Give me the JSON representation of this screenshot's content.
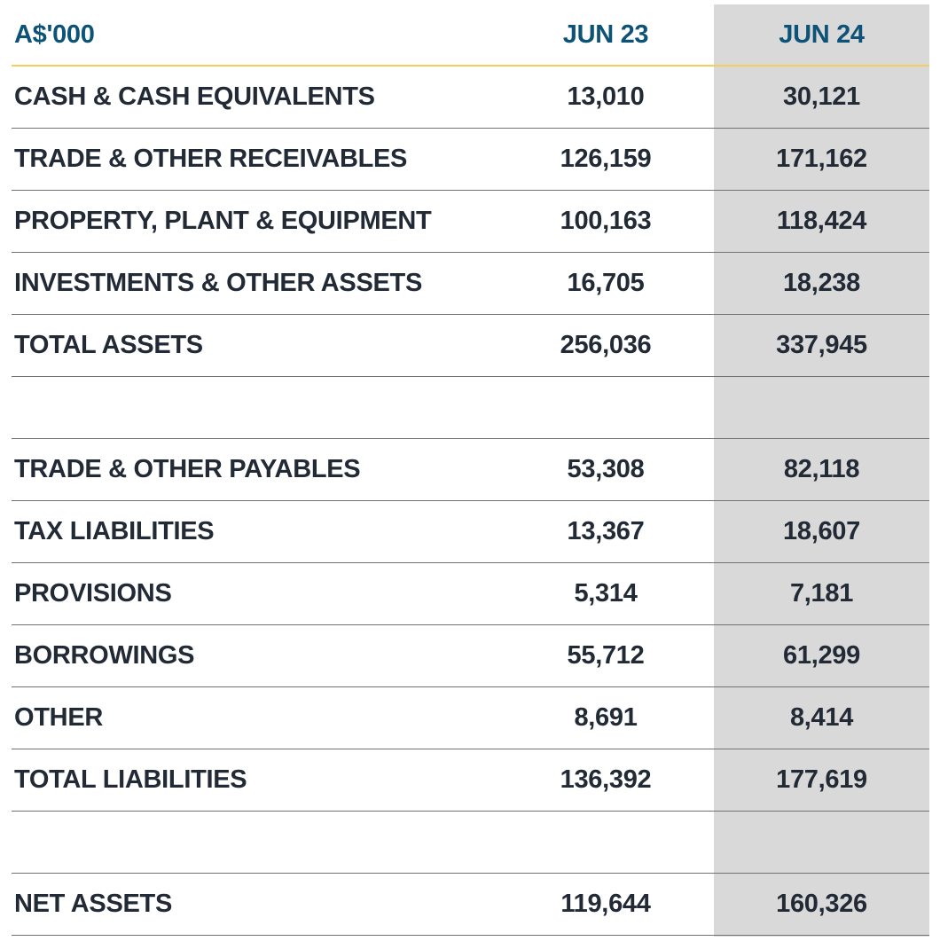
{
  "header": {
    "unit": "A$'000",
    "col1": "JUN 23",
    "col2": "JUN 24"
  },
  "colors": {
    "header_text": "#0d5277",
    "body_text": "#222a36",
    "shade": "#d9d9d9",
    "rule_gold": "#f2cf5b"
  },
  "rows": [
    {
      "label": "CASH & CASH EQUIVALENTS",
      "jun23": "13,010",
      "jun24": "30,121"
    },
    {
      "label": "TRADE & OTHER RECEIVABLES",
      "jun23": "126,159",
      "jun24": "171,162"
    },
    {
      "label": "PROPERTY, PLANT & EQUIPMENT",
      "jun23": "100,163",
      "jun24": "118,424"
    },
    {
      "label": "INVESTMENTS & OTHER ASSETS",
      "jun23": "16,705",
      "jun24": "18,238"
    },
    {
      "label": "TOTAL ASSETS",
      "jun23": "256,036",
      "jun24": "337,945"
    },
    {
      "label": "",
      "jun23": "",
      "jun24": ""
    },
    {
      "label": "TRADE & OTHER PAYABLES",
      "jun23": "53,308",
      "jun24": "82,118"
    },
    {
      "label": "TAX LIABILITIES",
      "jun23": "13,367",
      "jun24": "18,607"
    },
    {
      "label": "PROVISIONS",
      "jun23": "5,314",
      "jun24": "7,181"
    },
    {
      "label": "BORROWINGS",
      "jun23": "55,712",
      "jun24": "61,299"
    },
    {
      "label": "OTHER",
      "jun23": "8,691",
      "jun24": "8,414"
    },
    {
      "label": "TOTAL LIABILITIES",
      "jun23": "136,392",
      "jun24": "177,619"
    },
    {
      "label": "",
      "jun23": "",
      "jun24": ""
    },
    {
      "label": "NET ASSETS",
      "jun23": "119,644",
      "jun24": "160,326"
    }
  ]
}
